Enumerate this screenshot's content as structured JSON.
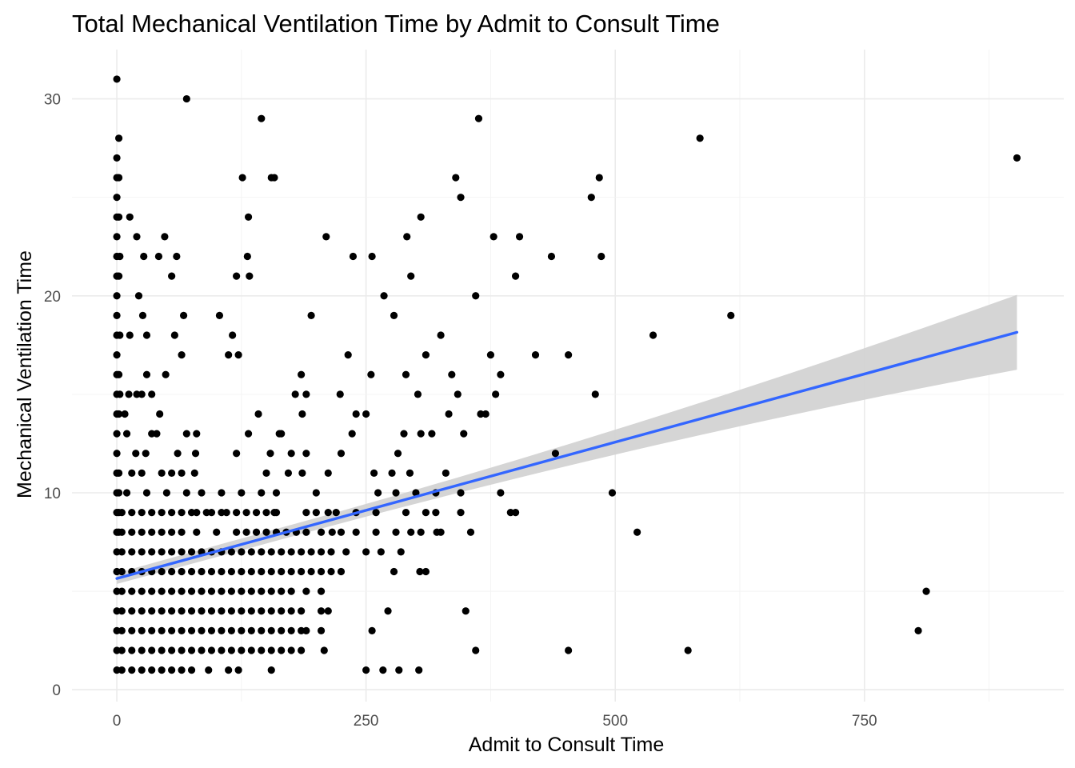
{
  "chart_data": {
    "type": "scatter",
    "title": "Total Mechanical Ventilation Time by Admit to Consult Time",
    "xlabel": "Admit to Consult Time",
    "ylabel": "Mechanical Ventilation Time",
    "xlim": [
      -45,
      950
    ],
    "ylim": [
      -0.6,
      32.5
    ],
    "x_ticks": [
      0,
      250,
      500,
      750
    ],
    "y_ticks": [
      0,
      10,
      20,
      30
    ],
    "x_tick_labels": [
      "0",
      "250",
      "500",
      "750"
    ],
    "y_tick_labels": [
      "0",
      "10",
      "20",
      "30"
    ],
    "grid": true,
    "point_color": "#000000",
    "trend_color": "#3366ff",
    "band_color": "#d3d3d3",
    "points": [
      [
        0,
        31
      ],
      [
        0,
        27
      ],
      [
        2,
        28
      ],
      [
        0,
        26
      ],
      [
        2,
        26
      ],
      [
        0,
        25
      ],
      [
        0,
        24
      ],
      [
        2,
        24
      ],
      [
        0,
        23
      ],
      [
        0,
        22
      ],
      [
        3,
        22
      ],
      [
        0,
        21
      ],
      [
        2,
        21
      ],
      [
        0,
        20
      ],
      [
        0,
        19
      ],
      [
        0,
        18
      ],
      [
        3,
        18
      ],
      [
        0,
        17
      ],
      [
        0,
        16
      ],
      [
        2,
        16
      ],
      [
        0,
        15
      ],
      [
        3,
        15
      ],
      [
        0,
        14
      ],
      [
        2,
        14
      ],
      [
        0,
        13
      ],
      [
        0,
        12
      ],
      [
        0,
        11
      ],
      [
        2,
        11
      ],
      [
        0,
        10
      ],
      [
        2,
        10
      ],
      [
        0,
        9
      ],
      [
        2,
        9
      ],
      [
        0,
        8
      ],
      [
        2,
        8
      ],
      [
        0,
        7
      ],
      [
        0,
        6
      ],
      [
        0,
        5
      ],
      [
        0,
        4
      ],
      [
        0,
        3
      ],
      [
        0,
        2
      ],
      [
        0,
        1
      ],
      [
        13,
        24
      ],
      [
        20,
        23
      ],
      [
        27,
        22
      ],
      [
        42,
        22
      ],
      [
        55,
        21
      ],
      [
        60,
        22
      ],
      [
        70,
        30
      ],
      [
        48,
        23
      ],
      [
        22,
        20
      ],
      [
        26,
        19
      ],
      [
        13,
        18
      ],
      [
        30,
        18
      ],
      [
        58,
        18
      ],
      [
        67,
        19
      ],
      [
        65,
        17
      ],
      [
        49,
        16
      ],
      [
        30,
        16
      ],
      [
        12,
        15
      ],
      [
        20,
        15
      ],
      [
        25,
        15
      ],
      [
        35,
        15
      ],
      [
        43,
        14
      ],
      [
        8,
        14
      ],
      [
        10,
        13
      ],
      [
        35,
        13
      ],
      [
        40,
        13
      ],
      [
        70,
        13
      ],
      [
        80,
        13
      ],
      [
        19,
        12
      ],
      [
        29,
        12
      ],
      [
        61,
        12
      ],
      [
        79,
        12
      ],
      [
        15,
        11
      ],
      [
        25,
        11
      ],
      [
        45,
        11
      ],
      [
        55,
        11
      ],
      [
        65,
        11
      ],
      [
        78,
        11
      ],
      [
        10,
        10
      ],
      [
        30,
        10
      ],
      [
        50,
        10
      ],
      [
        70,
        10
      ],
      [
        85,
        10
      ],
      [
        103,
        19
      ],
      [
        112,
        17
      ],
      [
        116,
        18
      ],
      [
        120,
        21
      ],
      [
        122,
        17
      ],
      [
        126,
        26
      ],
      [
        132,
        24
      ],
      [
        133,
        21
      ],
      [
        131,
        22
      ],
      [
        145,
        29
      ],
      [
        155,
        26
      ],
      [
        158,
        26
      ],
      [
        142,
        14
      ],
      [
        132,
        13
      ],
      [
        154,
        12
      ],
      [
        163,
        13
      ],
      [
        150,
        11
      ],
      [
        120,
        12
      ],
      [
        105,
        10
      ],
      [
        125,
        10
      ],
      [
        145,
        10
      ],
      [
        160,
        10
      ],
      [
        130,
        9
      ],
      [
        158,
        9
      ],
      [
        105,
        9
      ],
      [
        90,
        9
      ],
      [
        80,
        9
      ],
      [
        210,
        23
      ],
      [
        224,
        15
      ],
      [
        232,
        17
      ],
      [
        237,
        22
      ],
      [
        240,
        14
      ],
      [
        236,
        13
      ],
      [
        225,
        12
      ],
      [
        212,
        11
      ],
      [
        195,
        19
      ],
      [
        185,
        16
      ],
      [
        190,
        15
      ],
      [
        186,
        14
      ],
      [
        179,
        15
      ],
      [
        165,
        13
      ],
      [
        186,
        11
      ],
      [
        175,
        12
      ],
      [
        190,
        12
      ],
      [
        172,
        11
      ],
      [
        200,
        10
      ],
      [
        256,
        22
      ],
      [
        250,
        14
      ],
      [
        255,
        16
      ],
      [
        268,
        20
      ],
      [
        278,
        19
      ],
      [
        282,
        12
      ],
      [
        291,
        23
      ],
      [
        295,
        21
      ],
      [
        288,
        13
      ],
      [
        290,
        16
      ],
      [
        302,
        15
      ],
      [
        305,
        24
      ],
      [
        305,
        13
      ],
      [
        310,
        17
      ],
      [
        316,
        13
      ],
      [
        325,
        18
      ],
      [
        333,
        14
      ],
      [
        336,
        16
      ],
      [
        340,
        26
      ],
      [
        345,
        25
      ],
      [
        342,
        15
      ],
      [
        348,
        13
      ],
      [
        360,
        20
      ],
      [
        363,
        29
      ],
      [
        365,
        14
      ],
      [
        370,
        14
      ],
      [
        375,
        17
      ],
      [
        378,
        23
      ],
      [
        380,
        15
      ],
      [
        385,
        16
      ],
      [
        400,
        21
      ],
      [
        404,
        23
      ],
      [
        420,
        17
      ],
      [
        436,
        22
      ],
      [
        440,
        12
      ],
      [
        453,
        17
      ],
      [
        476,
        25
      ],
      [
        480,
        15
      ],
      [
        484,
        26
      ],
      [
        486,
        22
      ],
      [
        294,
        11
      ],
      [
        258,
        11
      ],
      [
        276,
        11
      ],
      [
        262,
        10
      ],
      [
        280,
        10
      ],
      [
        300,
        10
      ],
      [
        320,
        10
      ],
      [
        330,
        11
      ],
      [
        345,
        10
      ],
      [
        385,
        10
      ],
      [
        538,
        18
      ],
      [
        585,
        28
      ],
      [
        616,
        19
      ],
      [
        497,
        10
      ],
      [
        522,
        8
      ],
      [
        453,
        2
      ],
      [
        573,
        2
      ],
      [
        360,
        2
      ],
      [
        350,
        4
      ],
      [
        303,
        1
      ],
      [
        267,
        1
      ],
      [
        250,
        1
      ],
      [
        283,
        1
      ],
      [
        272,
        4
      ],
      [
        256,
        3
      ],
      [
        278,
        6
      ],
      [
        304,
        6
      ],
      [
        310,
        6
      ],
      [
        321,
        8
      ],
      [
        355,
        8
      ],
      [
        395,
        9
      ],
      [
        400,
        9
      ],
      [
        804,
        3
      ],
      [
        812,
        5
      ],
      [
        903,
        27
      ],
      [
        5,
        9
      ],
      [
        15,
        9
      ],
      [
        25,
        9
      ],
      [
        35,
        9
      ],
      [
        45,
        9
      ],
      [
        55,
        9
      ],
      [
        65,
        9
      ],
      [
        75,
        9
      ],
      [
        95,
        9
      ],
      [
        110,
        9
      ],
      [
        120,
        9
      ],
      [
        140,
        9
      ],
      [
        150,
        9
      ],
      [
        160,
        9
      ],
      [
        190,
        9
      ],
      [
        200,
        9
      ],
      [
        212,
        9
      ],
      [
        220,
        9
      ],
      [
        240,
        9
      ],
      [
        260,
        9
      ],
      [
        290,
        9
      ],
      [
        310,
        9
      ],
      [
        320,
        9
      ],
      [
        345,
        9
      ],
      [
        5,
        8
      ],
      [
        15,
        8
      ],
      [
        25,
        8
      ],
      [
        35,
        8
      ],
      [
        45,
        8
      ],
      [
        55,
        8
      ],
      [
        65,
        8
      ],
      [
        80,
        8
      ],
      [
        100,
        8
      ],
      [
        120,
        8
      ],
      [
        130,
        8
      ],
      [
        140,
        8
      ],
      [
        150,
        8
      ],
      [
        160,
        8
      ],
      [
        170,
        8
      ],
      [
        180,
        8
      ],
      [
        190,
        8
      ],
      [
        205,
        8
      ],
      [
        216,
        8
      ],
      [
        225,
        8
      ],
      [
        240,
        8
      ],
      [
        260,
        8
      ],
      [
        280,
        8
      ],
      [
        295,
        8
      ],
      [
        305,
        8
      ],
      [
        325,
        8
      ],
      [
        5,
        7
      ],
      [
        15,
        7
      ],
      [
        25,
        7
      ],
      [
        35,
        7
      ],
      [
        45,
        7
      ],
      [
        55,
        7
      ],
      [
        65,
        7
      ],
      [
        75,
        7
      ],
      [
        85,
        7
      ],
      [
        95,
        7
      ],
      [
        105,
        7
      ],
      [
        115,
        7
      ],
      [
        125,
        7
      ],
      [
        135,
        7
      ],
      [
        145,
        7
      ],
      [
        155,
        7
      ],
      [
        165,
        7
      ],
      [
        175,
        7
      ],
      [
        185,
        7
      ],
      [
        195,
        7
      ],
      [
        205,
        7
      ],
      [
        215,
        7
      ],
      [
        230,
        7
      ],
      [
        250,
        7
      ],
      [
        265,
        7
      ],
      [
        285,
        7
      ],
      [
        5,
        6
      ],
      [
        15,
        6
      ],
      [
        25,
        6
      ],
      [
        35,
        6
      ],
      [
        45,
        6
      ],
      [
        55,
        6
      ],
      [
        65,
        6
      ],
      [
        75,
        6
      ],
      [
        85,
        6
      ],
      [
        95,
        6
      ],
      [
        105,
        6
      ],
      [
        115,
        6
      ],
      [
        125,
        6
      ],
      [
        135,
        6
      ],
      [
        145,
        6
      ],
      [
        155,
        6
      ],
      [
        165,
        6
      ],
      [
        175,
        6
      ],
      [
        185,
        6
      ],
      [
        195,
        6
      ],
      [
        205,
        6
      ],
      [
        215,
        6
      ],
      [
        225,
        6
      ],
      [
        5,
        5
      ],
      [
        15,
        5
      ],
      [
        25,
        5
      ],
      [
        35,
        5
      ],
      [
        45,
        5
      ],
      [
        55,
        5
      ],
      [
        65,
        5
      ],
      [
        75,
        5
      ],
      [
        85,
        5
      ],
      [
        95,
        5
      ],
      [
        105,
        5
      ],
      [
        115,
        5
      ],
      [
        125,
        5
      ],
      [
        135,
        5
      ],
      [
        145,
        5
      ],
      [
        155,
        5
      ],
      [
        165,
        5
      ],
      [
        175,
        5
      ],
      [
        190,
        5
      ],
      [
        205,
        5
      ],
      [
        5,
        4
      ],
      [
        15,
        4
      ],
      [
        25,
        4
      ],
      [
        35,
        4
      ],
      [
        45,
        4
      ],
      [
        55,
        4
      ],
      [
        65,
        4
      ],
      [
        75,
        4
      ],
      [
        85,
        4
      ],
      [
        95,
        4
      ],
      [
        105,
        4
      ],
      [
        115,
        4
      ],
      [
        125,
        4
      ],
      [
        135,
        4
      ],
      [
        145,
        4
      ],
      [
        155,
        4
      ],
      [
        165,
        4
      ],
      [
        175,
        4
      ],
      [
        185,
        4
      ],
      [
        205,
        4
      ],
      [
        212,
        4
      ],
      [
        5,
        3
      ],
      [
        15,
        3
      ],
      [
        25,
        3
      ],
      [
        35,
        3
      ],
      [
        45,
        3
      ],
      [
        55,
        3
      ],
      [
        65,
        3
      ],
      [
        75,
        3
      ],
      [
        85,
        3
      ],
      [
        95,
        3
      ],
      [
        105,
        3
      ],
      [
        115,
        3
      ],
      [
        125,
        3
      ],
      [
        135,
        3
      ],
      [
        145,
        3
      ],
      [
        155,
        3
      ],
      [
        165,
        3
      ],
      [
        175,
        3
      ],
      [
        185,
        3
      ],
      [
        190,
        3
      ],
      [
        205,
        3
      ],
      [
        5,
        2
      ],
      [
        15,
        2
      ],
      [
        25,
        2
      ],
      [
        35,
        2
      ],
      [
        45,
        2
      ],
      [
        55,
        2
      ],
      [
        65,
        2
      ],
      [
        75,
        2
      ],
      [
        85,
        2
      ],
      [
        95,
        2
      ],
      [
        105,
        2
      ],
      [
        115,
        2
      ],
      [
        125,
        2
      ],
      [
        135,
        2
      ],
      [
        145,
        2
      ],
      [
        155,
        2
      ],
      [
        165,
        2
      ],
      [
        175,
        2
      ],
      [
        185,
        2
      ],
      [
        208,
        2
      ],
      [
        5,
        1
      ],
      [
        15,
        1
      ],
      [
        25,
        1
      ],
      [
        35,
        1
      ],
      [
        45,
        1
      ],
      [
        55,
        1
      ],
      [
        65,
        1
      ],
      [
        75,
        1
      ],
      [
        92,
        1
      ],
      [
        112,
        1
      ],
      [
        122,
        1
      ],
      [
        155,
        1
      ]
    ],
    "trend": {
      "x": [
        0,
        903
      ],
      "y": [
        5.65,
        18.15
      ]
    },
    "band": {
      "x": [
        0,
        903
      ],
      "lower": [
        5.4,
        16.3
      ],
      "upper": [
        5.95,
        20.1
      ],
      "center_half_width": 0.3
    }
  }
}
